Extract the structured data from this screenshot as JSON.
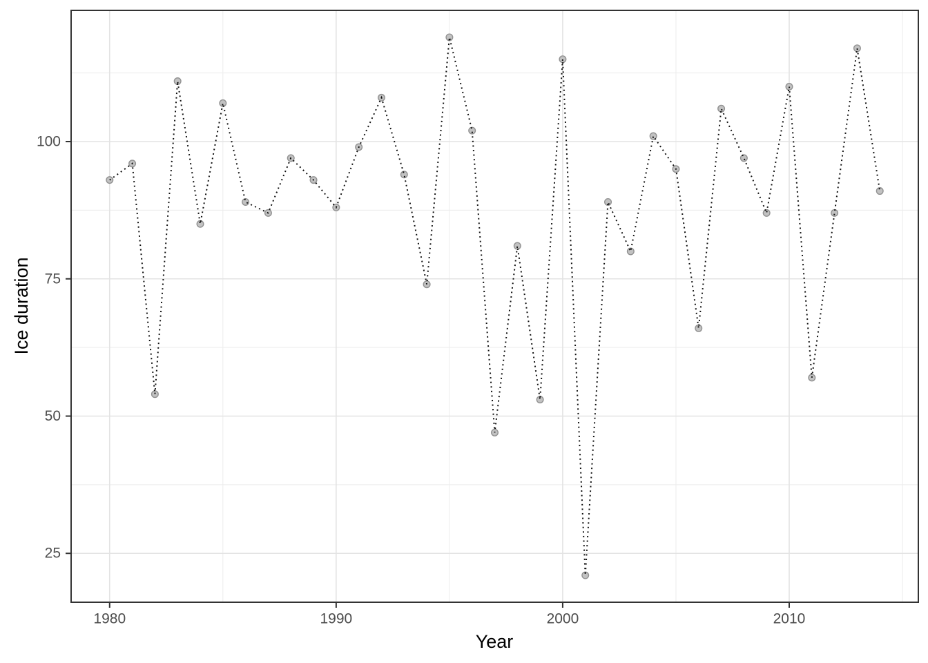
{
  "page": {
    "background": "#FFFFFF"
  },
  "chart_data": {
    "type": "line",
    "title": "",
    "xlabel": "Year",
    "ylabel": "Ice duration",
    "line_style": "dotted",
    "marker": "circle",
    "legend": "none",
    "grid": true,
    "x": [
      1980,
      1981,
      1982,
      1983,
      1984,
      1985,
      1986,
      1987,
      1988,
      1989,
      1990,
      1991,
      1992,
      1993,
      1994,
      1995,
      1996,
      1997,
      1998,
      1999,
      2000,
      2001,
      2002,
      2003,
      2004,
      2005,
      2006,
      2007,
      2008,
      2009,
      2010,
      2011,
      2012,
      2013,
      2014
    ],
    "series": [
      {
        "name": "Ice duration",
        "values": [
          93,
          96,
          54,
          111,
          85,
          107,
          89,
          87,
          97,
          93,
          88,
          99,
          108,
          94,
          74,
          119,
          102,
          47,
          81,
          53,
          115,
          21,
          89,
          80,
          101,
          95,
          66,
          106,
          97,
          87,
          110,
          57,
          87,
          117,
          91
        ]
      }
    ],
    "x_axis": {
      "label": "Year",
      "ticks": [
        1980,
        1990,
        2000,
        2010
      ],
      "tick_labels": [
        "1980",
        "1990",
        "2000",
        "2010"
      ],
      "minor_ticks": [
        1985,
        1995,
        2005,
        2015
      ],
      "range": [
        1978.3,
        2015.7
      ]
    },
    "y_axis": {
      "label": "Ice duration",
      "ticks": [
        25,
        50,
        75,
        100
      ],
      "tick_labels": [
        "25",
        "50",
        "75",
        "100"
      ],
      "minor_ticks": [
        37.5,
        62.5,
        87.5,
        112.5
      ],
      "range": [
        16.1,
        123.9
      ]
    }
  },
  "style": {
    "background": "#FFFFFF",
    "panel_background": "#FFFFFF",
    "panel_border": "#333333",
    "grid_major": "#E3E3E3",
    "grid_minor": "#ECECEC",
    "tick_color": "#333333",
    "tick_label_color": "#4D4D4D",
    "axis_title_color": "#000000",
    "line_color": "#111111",
    "point_fill": "#C2C2C2",
    "point_stroke": "#919191"
  }
}
